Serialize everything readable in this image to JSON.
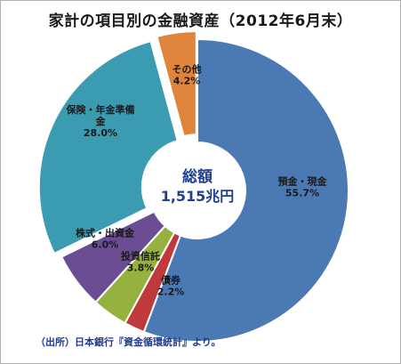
{
  "title": "家計の項目別の金融資産（2012年6月末）",
  "center": {
    "line1": "総額",
    "line2": "1,515兆円"
  },
  "source": "（出所）日本銀行『資金循環統計』より。",
  "chart_data": {
    "type": "pie",
    "donut": true,
    "title": "家計の項目別の金融資産（2012年6月末）",
    "slices": [
      {
        "name": "預金・現金",
        "value": 55.7,
        "label": "55.7%",
        "color": "#4a79b4",
        "label_lines": [
          "預金・現金"
        ]
      },
      {
        "name": "債券",
        "value": 2.2,
        "label": "2.2%",
        "color": "#c0393c",
        "label_lines": [
          "債券"
        ]
      },
      {
        "name": "投資信託",
        "value": 3.8,
        "label": "3.8%",
        "color": "#95b23e",
        "label_lines": [
          "投資信託"
        ]
      },
      {
        "name": "株式・出資金",
        "value": 6.0,
        "label": "6.0%",
        "color": "#6b4d93",
        "label_lines": [
          "株式・出資金"
        ]
      },
      {
        "name": "保険・年金準備金",
        "value": 28.0,
        "label": "28.0%",
        "color": "#3b9bb0",
        "label_lines": [
          "保険・年金準備",
          "金"
        ]
      },
      {
        "name": "その他",
        "value": 4.2,
        "label": "4.2%",
        "color": "#e0843b",
        "label_lines": [
          "その他"
        ]
      }
    ]
  }
}
